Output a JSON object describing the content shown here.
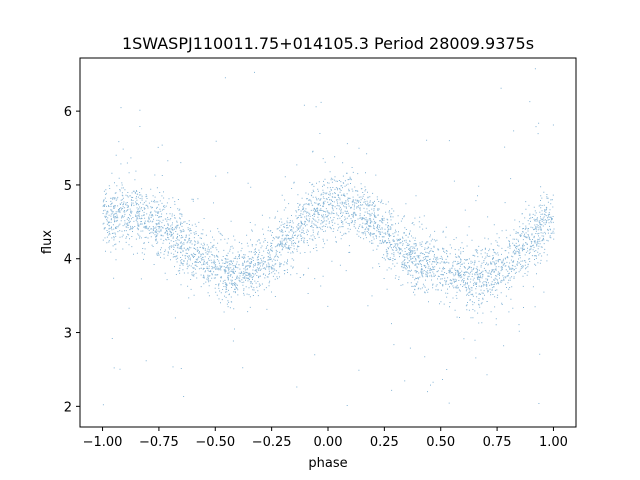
{
  "chart_data": {
    "type": "scatter",
    "title": "1SWASPJ110011.75+014105.3 Period 28009.9375s",
    "xlabel": "phase",
    "ylabel": "flux",
    "xlim": [
      -1.1,
      1.1
    ],
    "ylim": [
      1.72,
      6.72
    ],
    "x_ticks": [
      -1.0,
      -0.75,
      -0.5,
      -0.25,
      0.0,
      0.25,
      0.5,
      0.75,
      1.0
    ],
    "x_tick_labels": [
      "−1.00",
      "−0.75",
      "−0.50",
      "−0.25",
      "0.00",
      "0.25",
      "0.50",
      "0.75",
      "1.00"
    ],
    "y_ticks": [
      2,
      3,
      4,
      5,
      6
    ],
    "y_tick_labels": [
      "2",
      "3",
      "4",
      "5",
      "6"
    ],
    "grid": false,
    "legend": "none",
    "marker_color": "#1f77b4",
    "series": [
      {
        "description_points": "phase-folded light curve trend (mean flux vs phase)",
        "x": [
          -1.0,
          -0.9,
          -0.8,
          -0.7,
          -0.6,
          -0.5,
          -0.45,
          -0.4,
          -0.3,
          -0.2,
          -0.1,
          0.0,
          0.05,
          0.1,
          0.2,
          0.3,
          0.4,
          0.5,
          0.6,
          0.65,
          0.7,
          0.8,
          0.9,
          1.0
        ],
        "values": [
          4.55,
          4.62,
          4.55,
          4.35,
          4.1,
          3.87,
          3.8,
          3.8,
          3.92,
          4.2,
          4.5,
          4.7,
          4.75,
          4.7,
          4.5,
          4.2,
          3.95,
          3.85,
          3.75,
          3.72,
          3.75,
          3.95,
          4.3,
          4.6
        ]
      }
    ]
  }
}
